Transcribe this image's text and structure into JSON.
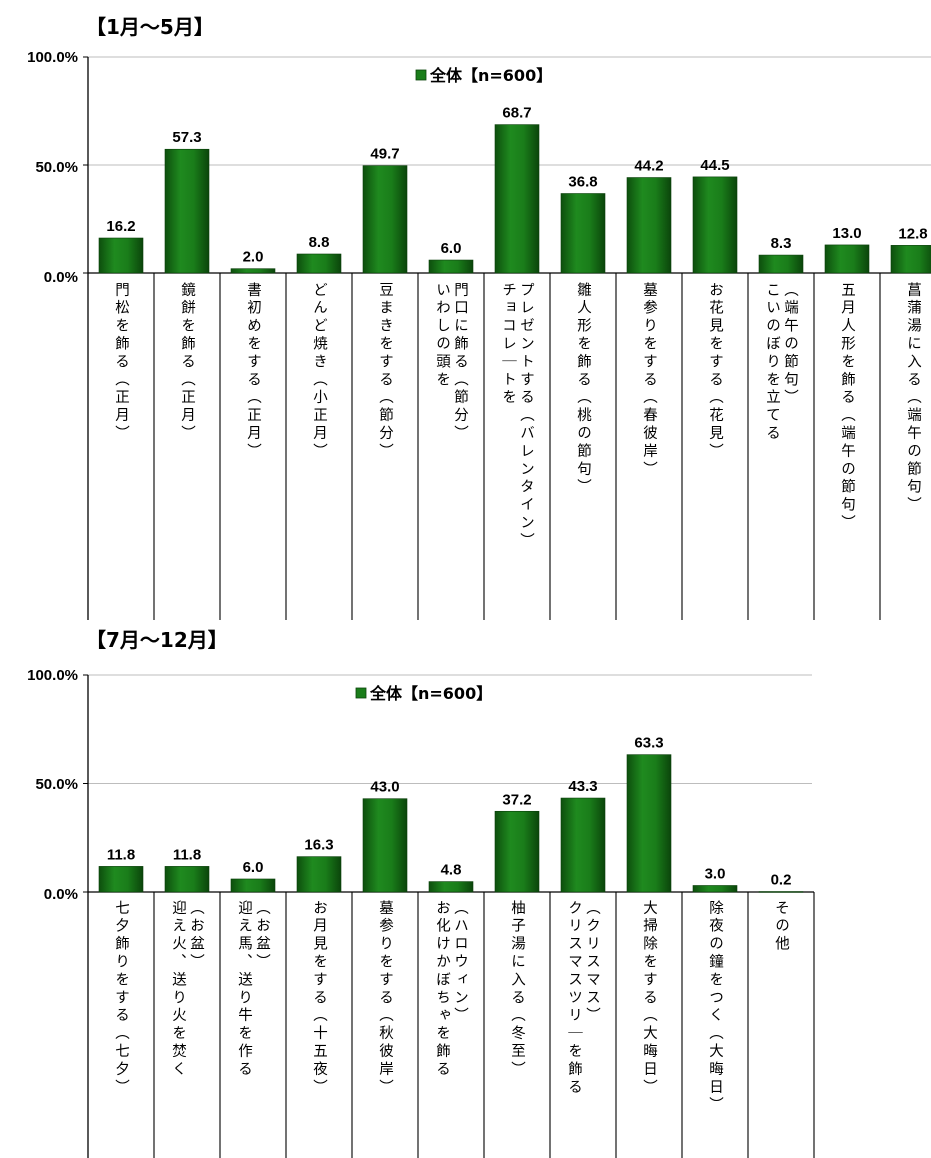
{
  "chart_data": [
    {
      "type": "bar",
      "title": "【1月～5月】",
      "legend": "全体【n=600】",
      "legend_position": "top-center",
      "ylim": [
        0,
        100
      ],
      "yticks": [
        "100.0%",
        "50.0%",
        "0.0%"
      ],
      "grid": true,
      "series_color": "#1f7a1f",
      "categories": [
        "門松を飾る（正月）",
        "鏡餅を飾る（正月）",
        "書初めをする（正月）",
        "どんど焼き（小正月）",
        "豆まきをする（節分）",
        "門口に飾る（節分）|いわしの頭を",
        "プレゼントする（バレンタイン）|チョコレートを",
        "雛人形を飾る（桃の節句）",
        "墓参りをする（春彼岸）",
        "お花見をする（花見）",
        "（端午の節句）|こいのぼりを立てる",
        "五月人形を飾る（端午の節句）",
        "菖蒲湯に入る（端午の節句）"
      ],
      "values": [
        16.2,
        57.3,
        2.0,
        8.8,
        49.7,
        6.0,
        68.7,
        36.8,
        44.2,
        44.5,
        8.3,
        13.0,
        12.8
      ],
      "value_labels": [
        "16.2",
        "57.3",
        "2.0",
        "8.8",
        "49.7",
        "6.0",
        "68.7",
        "36.8",
        "44.2",
        "44.5",
        "8.3",
        "13.0",
        "12.8"
      ]
    },
    {
      "type": "bar",
      "title": "【7月～12月】",
      "legend": "全体【n=600】",
      "legend_position": "top-center",
      "ylim": [
        0,
        100
      ],
      "yticks": [
        "100.0%",
        "50.0%",
        "0.0%"
      ],
      "grid": true,
      "series_color": "#1f7a1f",
      "categories": [
        "七夕飾りをする（七夕）",
        "（お盆）|迎え火、送り火を焚く",
        "（お盆）|迎え馬、送り牛を作る",
        "お月見をする（十五夜）",
        "墓参りをする（秋彼岸）",
        "（ハロウィン）|お化けかぼちゃを飾る",
        "柚子湯に入る（冬至）",
        "（クリスマス）|クリスマスツリーを飾る",
        "大掃除をする（大晦日）",
        "除夜の鐘をつく（大晦日）",
        "その他"
      ],
      "values": [
        11.8,
        11.8,
        6.0,
        16.3,
        43.0,
        4.8,
        37.2,
        43.3,
        63.3,
        3.0,
        0.2
      ],
      "value_labels": [
        "11.8",
        "11.8",
        "6.0",
        "16.3",
        "43.0",
        "4.8",
        "37.2",
        "43.3",
        "63.3",
        "3.0",
        "0.2"
      ]
    }
  ]
}
